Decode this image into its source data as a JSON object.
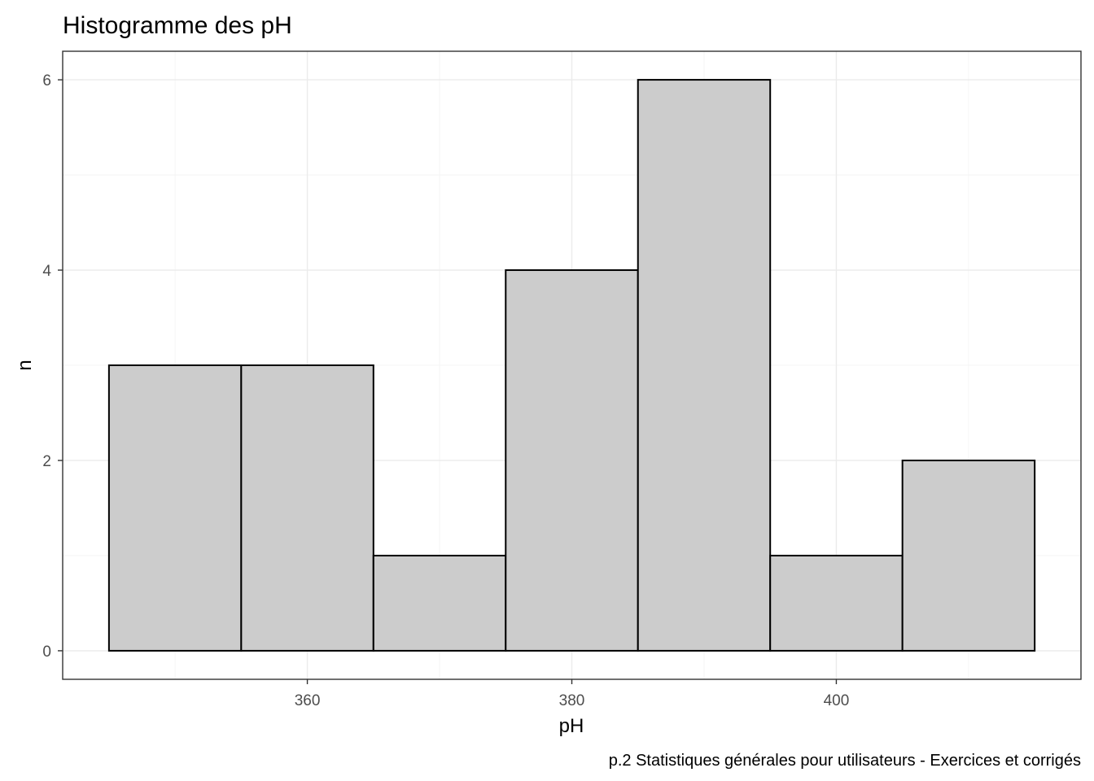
{
  "chart_data": {
    "type": "bar",
    "title": "Histogramme des pH",
    "xlabel": "pH",
    "ylabel": "n",
    "caption": "p.2 Statistiques générales pour utilisateurs - Exercices et corrigés",
    "bins": [
      {
        "x_start": 345,
        "x_end": 355,
        "count": 3
      },
      {
        "x_start": 355,
        "x_end": 365,
        "count": 3
      },
      {
        "x_start": 365,
        "x_end": 375,
        "count": 1
      },
      {
        "x_start": 375,
        "x_end": 385,
        "count": 4
      },
      {
        "x_start": 385,
        "x_end": 395,
        "count": 6
      },
      {
        "x_start": 395,
        "x_end": 405,
        "count": 1
      },
      {
        "x_start": 405,
        "x_end": 415,
        "count": 2
      }
    ],
    "xlim": [
      341.5,
      418.5
    ],
    "ylim": [
      -0.3,
      6.3
    ],
    "x_ticks": [
      360,
      380,
      400
    ],
    "x_tick_labels": [
      "360",
      "380",
      "400"
    ],
    "y_ticks": [
      0,
      2,
      4,
      6
    ],
    "y_tick_labels": [
      "0",
      "2",
      "4",
      "6"
    ],
    "grid": true,
    "legend": "none",
    "bar_fill": "#cccccc",
    "bar_outline": "#000000"
  }
}
